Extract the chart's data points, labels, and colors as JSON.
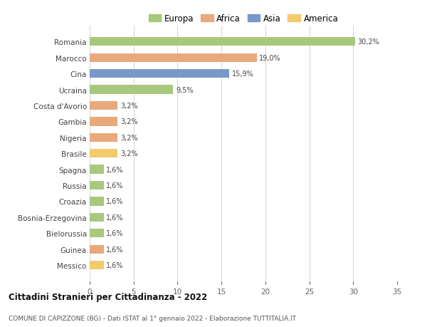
{
  "countries": [
    "Romania",
    "Marocco",
    "Cina",
    "Ucraina",
    "Costa d'Avorio",
    "Gambia",
    "Nigeria",
    "Brasile",
    "Spagna",
    "Russia",
    "Croazia",
    "Bosnia-Erzegovina",
    "Bielorussia",
    "Guinea",
    "Messico"
  ],
  "values": [
    30.2,
    19.0,
    15.9,
    9.5,
    3.2,
    3.2,
    3.2,
    3.2,
    1.6,
    1.6,
    1.6,
    1.6,
    1.6,
    1.6,
    1.6
  ],
  "labels": [
    "30,2%",
    "19,0%",
    "15,9%",
    "9,5%",
    "3,2%",
    "3,2%",
    "3,2%",
    "3,2%",
    "1,6%",
    "1,6%",
    "1,6%",
    "1,6%",
    "1,6%",
    "1,6%",
    "1,6%"
  ],
  "continents": [
    "Europa",
    "Africa",
    "Asia",
    "Europa",
    "Africa",
    "Africa",
    "Africa",
    "America",
    "Europa",
    "Europa",
    "Europa",
    "Europa",
    "Europa",
    "Africa",
    "America"
  ],
  "colors": {
    "Europa": "#a8c87e",
    "Africa": "#e8a97c",
    "Asia": "#7898c8",
    "America": "#f2cb6e"
  },
  "xlim": [
    0,
    35
  ],
  "xticks": [
    0,
    5,
    10,
    15,
    20,
    25,
    30,
    35
  ],
  "title": "Cittadini Stranieri per Cittadinanza - 2022",
  "subtitle": "COMUNE DI CAPIZZONE (BG) - Dati ISTAT al 1° gennaio 2022 - Elaborazione TUTTITALIA.IT",
  "background_color": "#ffffff",
  "grid_color": "#d8d8d8",
  "bar_height": 0.55,
  "legend_order": [
    "Europa",
    "Africa",
    "Asia",
    "America"
  ]
}
